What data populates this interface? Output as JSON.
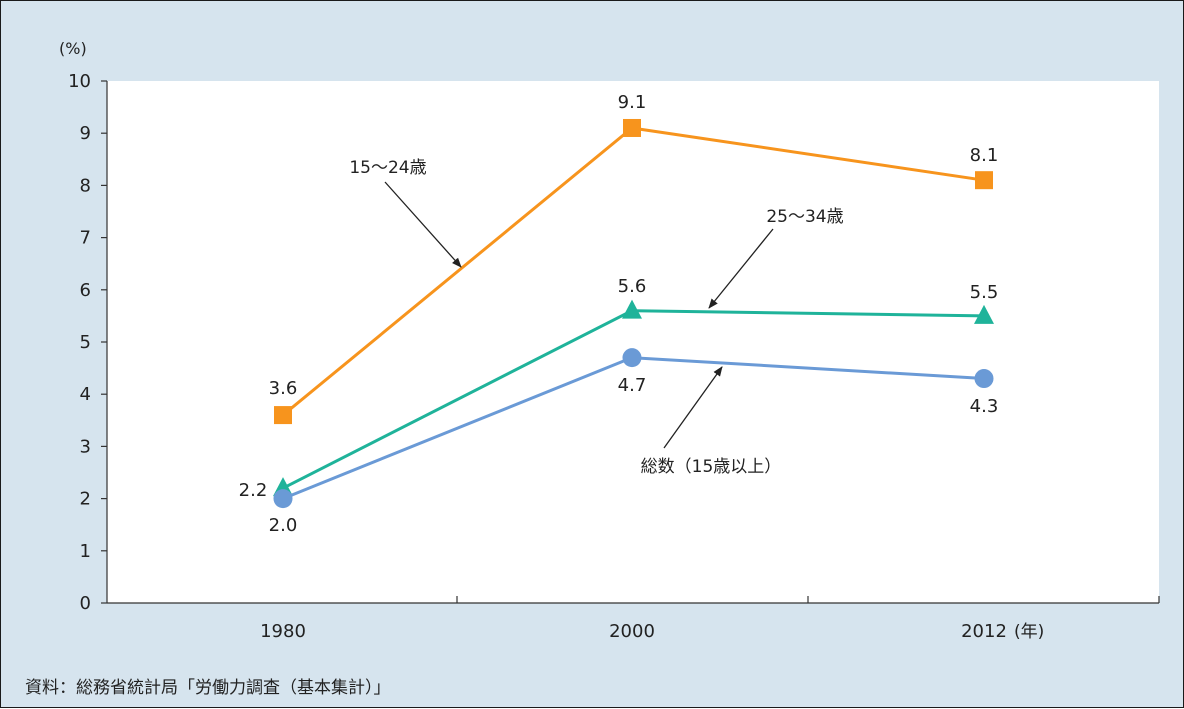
{
  "chart_data": {
    "type": "line",
    "x_unit": "(年)",
    "y_unit": "(%)",
    "ylim": [
      0,
      10
    ],
    "y_ticks": [
      "0",
      "1",
      "2",
      "3",
      "4",
      "5",
      "6",
      "7",
      "8",
      "9",
      "10"
    ],
    "categories": [
      "1980",
      "2000",
      "2012"
    ],
    "grid": false,
    "series": [
      {
        "name": "15～24歳",
        "color": "#f7941d",
        "marker": "square",
        "values": [
          3.6,
          9.1,
          8.1
        ],
        "labels": [
          "3.6",
          "9.1",
          "8.1"
        ]
      },
      {
        "name": "25～34歳",
        "color": "#1fb39a",
        "marker": "triangle",
        "values": [
          2.2,
          5.6,
          5.5
        ],
        "labels": [
          "2.2",
          "5.6",
          "5.5"
        ]
      },
      {
        "name": "総数（15歳以上）",
        "color": "#6a9ad6",
        "marker": "circle",
        "values": [
          2.0,
          4.7,
          4.3
        ],
        "labels": [
          "2.0",
          "4.7",
          "4.3"
        ]
      }
    ]
  },
  "source": "資料：総務省統計局「労働力調査（基本集計）」"
}
